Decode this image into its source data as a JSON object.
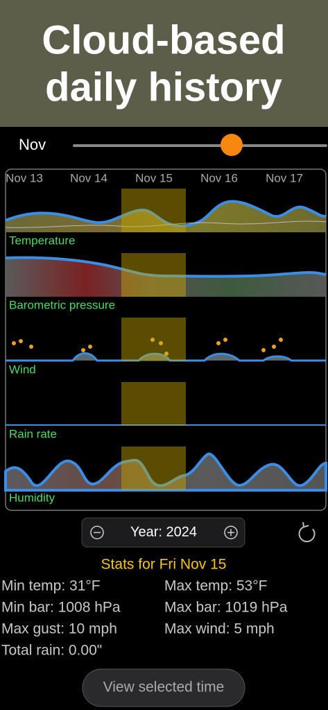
{
  "header": {
    "title_lines": [
      "Cloud-based",
      "daily history"
    ]
  },
  "month_slider": {
    "label": "Nov"
  },
  "timeline": {
    "dates": [
      "Nov 13",
      "Nov 14",
      "Nov 15",
      "Nov 16",
      "Nov 17"
    ],
    "panels": [
      "Temperature",
      "Barometric pressure",
      "Wind",
      "Rain rate",
      "Humidity"
    ]
  },
  "year_control": {
    "label": "Year: 2024"
  },
  "stats": {
    "title": "Stats for Fri Nov 15",
    "items": [
      "Min temp: 31°F",
      "Max temp: 53°F",
      "Min bar: 1008 hPa",
      "Max bar: 1019 hPa",
      "Max gust: 10 mph",
      "Max wind: 5 mph",
      "Total rain: 0.00\""
    ]
  },
  "button": {
    "label": "View selected time"
  }
}
